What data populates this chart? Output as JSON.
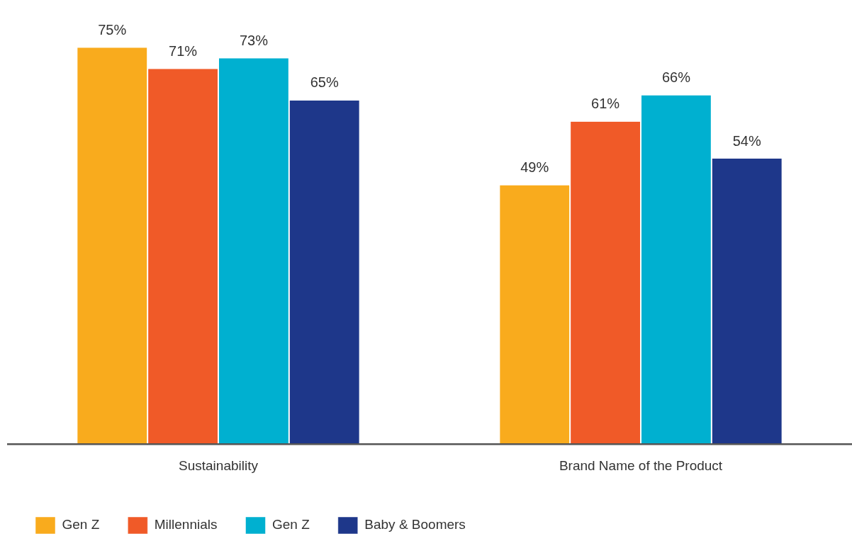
{
  "chart_data": {
    "type": "bar",
    "categories": [
      "Sustainability",
      "Brand Name of the Product"
    ],
    "series": [
      {
        "name": "Gen Z",
        "color": "#f9ab1d",
        "values": [
          75,
          49
        ],
        "value_labels": [
          "75%",
          "49%"
        ]
      },
      {
        "name": "Millennials",
        "color": "#f05a28",
        "values": [
          71,
          61
        ],
        "value_labels": [
          "71%",
          "61%"
        ]
      },
      {
        "name": "Gen Z",
        "color": "#00b0d0",
        "values": [
          73,
          66
        ],
        "value_labels": [
          "73%",
          "66%"
        ]
      },
      {
        "name": "Baby & Boomers",
        "color": "#1e378a",
        "values": [
          65,
          54
        ],
        "value_labels": [
          "65%",
          "54%"
        ]
      }
    ],
    "grid": false,
    "legend": "bottom left"
  }
}
